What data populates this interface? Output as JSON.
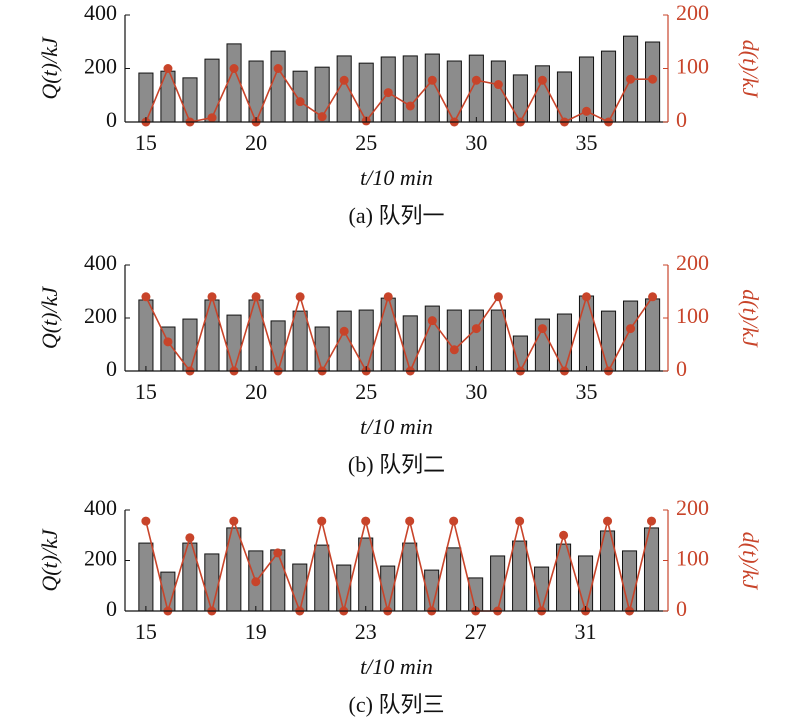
{
  "chart_data": [
    {
      "type": "bar",
      "caption": "(a) 队列一",
      "xlabel": "t/10 min",
      "ylabel": "Q(t)/kJ",
      "y2label": "d(t)/kJ",
      "x": [
        15,
        16,
        17,
        18,
        19,
        20,
        21,
        22,
        23,
        24,
        25,
        26,
        27,
        28,
        29,
        30,
        31,
        32,
        33,
        34,
        35,
        36,
        37,
        38
      ],
      "xlim": [
        14.05,
        38.7
      ],
      "xticks": [
        15,
        20,
        25,
        30,
        35
      ],
      "ylim": [
        0,
        400
      ],
      "yticks": [
        0,
        200,
        400
      ],
      "y2lim": [
        0,
        200
      ],
      "y2ticks": [
        0,
        100,
        200
      ],
      "series": [
        {
          "type": "bar",
          "color": "#8c8c8c",
          "values": [
            183,
            190,
            165,
            235,
            292,
            228,
            265,
            190,
            205,
            247,
            220,
            243,
            247,
            254,
            228,
            250,
            228,
            176,
            210,
            187,
            243,
            265,
            321,
            299
          ]
        },
        {
          "type": "line",
          "axis": "y2",
          "color": "#c8442a",
          "values": [
            0,
            100,
            0,
            8,
            100,
            0,
            100,
            38,
            10,
            78,
            2,
            55,
            30,
            78,
            0,
            78,
            70,
            0,
            78,
            0,
            20,
            0,
            80,
            80
          ]
        }
      ]
    },
    {
      "type": "bar",
      "caption": "(b) 队列二",
      "xlabel": "t/10 min",
      "ylabel": "Q(t)/kJ",
      "y2label": "d(t)/kJ",
      "x": [
        15,
        16,
        17,
        18,
        19,
        20,
        21,
        22,
        23,
        24,
        25,
        26,
        27,
        28,
        29,
        30,
        31,
        32,
        33,
        34,
        35,
        36,
        37,
        38
      ],
      "xlim": [
        14.05,
        38.7
      ],
      "xticks": [
        15,
        20,
        25,
        30,
        35
      ],
      "ylim": [
        0,
        400
      ],
      "yticks": [
        0,
        200,
        400
      ],
      "y2lim": [
        0,
        200
      ],
      "y2ticks": [
        0,
        100,
        200
      ],
      "series": [
        {
          "type": "bar",
          "color": "#8c8c8c",
          "values": [
            268,
            166,
            196,
            268,
            211,
            268,
            189,
            226,
            166,
            226,
            230,
            275,
            208,
            245,
            230,
            230,
            230,
            132,
            196,
            215,
            283,
            226,
            264,
            272
          ]
        },
        {
          "type": "line",
          "axis": "y2",
          "color": "#c8442a",
          "values": [
            140,
            55,
            0,
            140,
            0,
            140,
            0,
            140,
            0,
            75,
            0,
            140,
            0,
            95,
            40,
            80,
            140,
            0,
            80,
            0,
            140,
            0,
            80,
            140
          ]
        }
      ]
    },
    {
      "type": "bar",
      "caption": "(c) 队列三",
      "xlabel": "t/10 min",
      "ylabel": "Q(t)/kJ",
      "y2label": "d(t)/kJ",
      "x": [
        15,
        15.8,
        16.6,
        17.4,
        18.2,
        19,
        19.8,
        20.6,
        21.4,
        22.2,
        23,
        23.8,
        24.6,
        25.4,
        26.2,
        27,
        27.8,
        28.6,
        29.4,
        30.2,
        31,
        31.8,
        32.6,
        33.4
      ],
      "xlim": [
        14.24,
        34
      ],
      "xticks": [
        15,
        19,
        23,
        27,
        31
      ],
      "ylim": [
        0,
        400
      ],
      "yticks": [
        0,
        200,
        400
      ],
      "y2lim": [
        0,
        200
      ],
      "y2ticks": [
        0,
        100,
        200
      ],
      "series": [
        {
          "type": "bar",
          "color": "#8c8c8c",
          "values": [
            269,
            154,
            269,
            226,
            329,
            238,
            242,
            186,
            261,
            182,
            289,
            178,
            269,
            162,
            250,
            131,
            218,
            277,
            174,
            265,
            218,
            317,
            238,
            329
          ]
        },
        {
          "type": "line",
          "axis": "y2",
          "color": "#c8442a",
          "values": [
            178,
            0,
            145,
            0,
            178,
            58,
            115,
            0,
            178,
            0,
            178,
            0,
            178,
            0,
            178,
            0,
            0,
            178,
            0,
            150,
            0,
            178,
            0,
            178
          ]
        }
      ]
    }
  ]
}
